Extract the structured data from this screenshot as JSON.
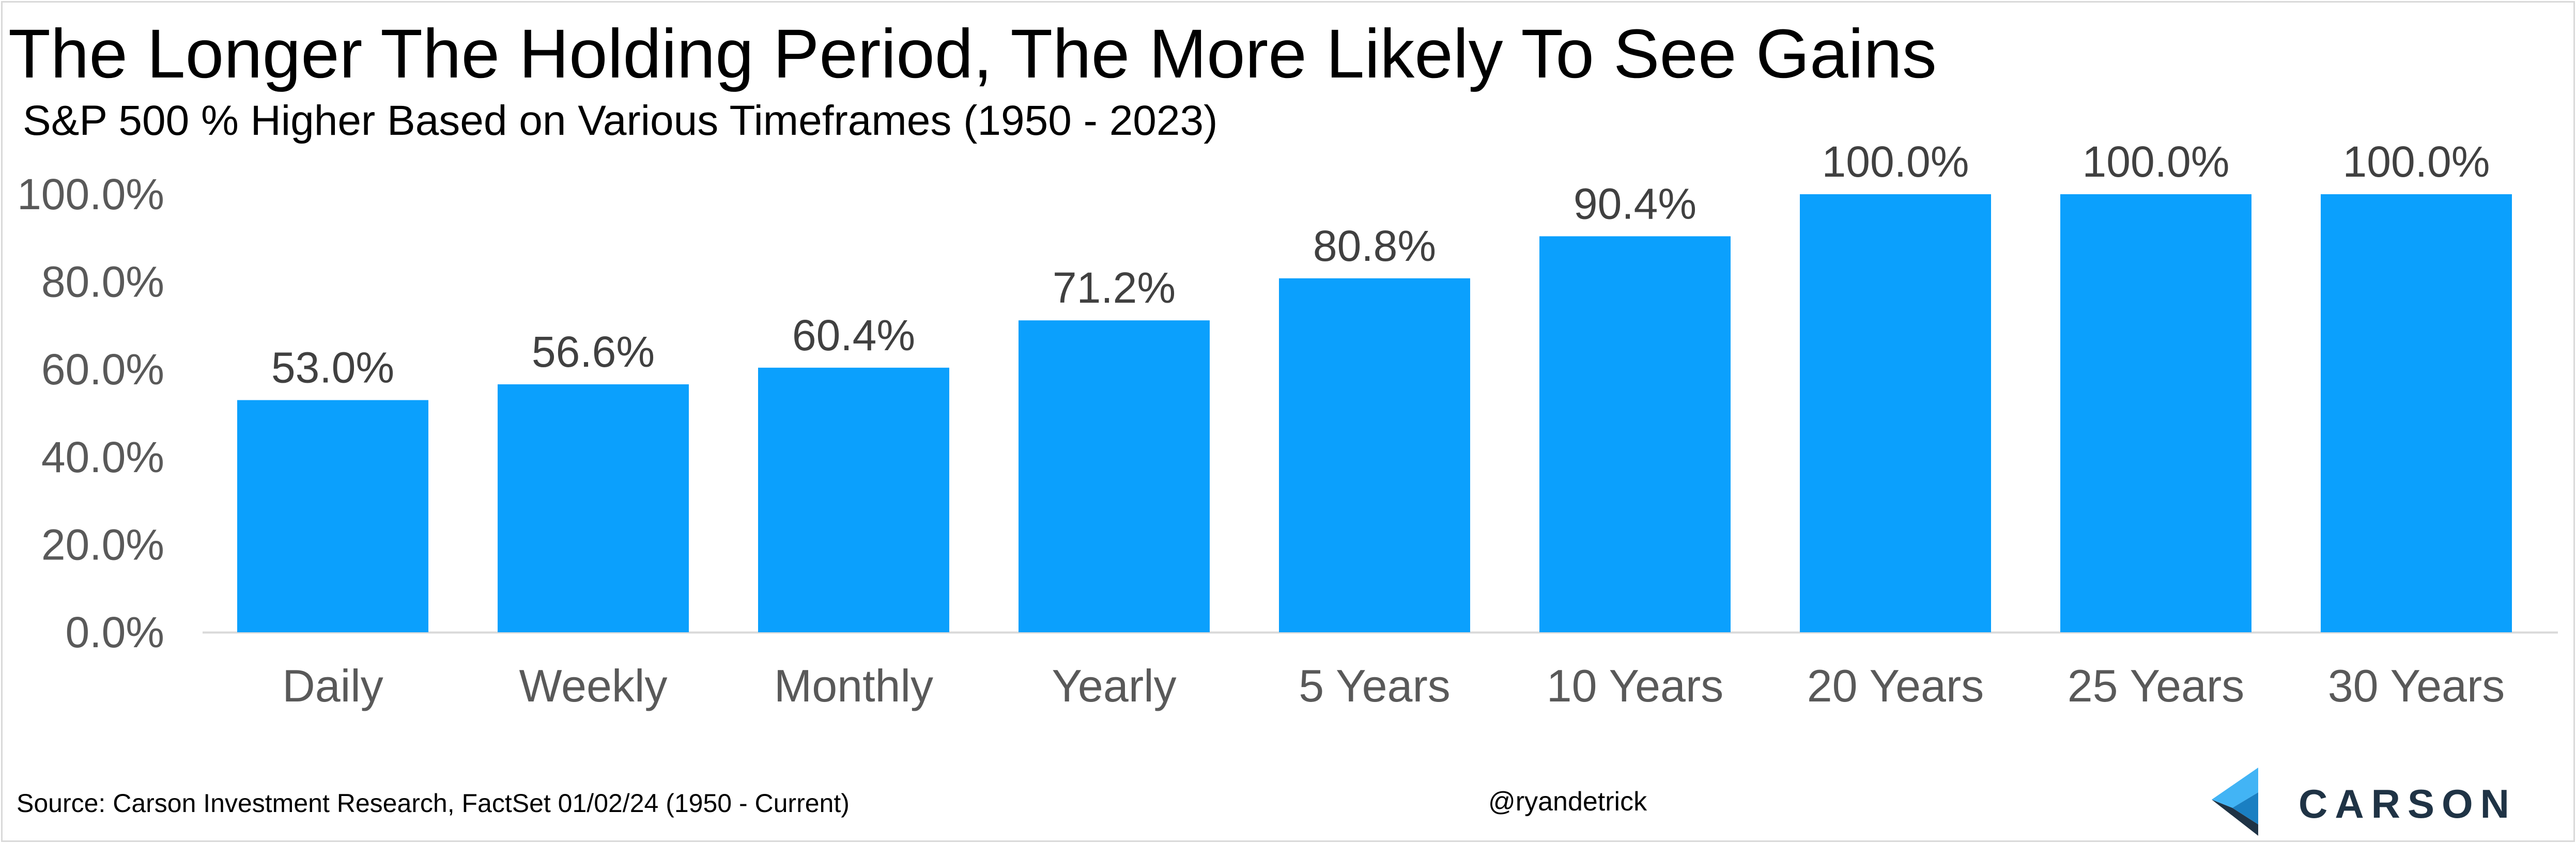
{
  "header": {
    "title": "The Longer The Holding Period, The More Likely To See Gains",
    "subtitle": "S&P 500 % Higher Based on Various Timeframes (1950 - 2023)"
  },
  "footer": {
    "source": "Source: Carson Investment Research, FactSet 01/02/24 (1950 - Current)",
    "handle": "@ryandetrick",
    "logo_text": "CARSON"
  },
  "colors": {
    "bar": "#0ba0fd",
    "axis_text": "#595959",
    "axis_line": "#d9d9d9",
    "logo_dark": "#1f3345",
    "logo_light": "#42b4f5",
    "logo_mid": "#1a7fc2"
  },
  "chart_data": {
    "type": "bar",
    "title": "The Longer The Holding Period, The More Likely To See Gains",
    "subtitle": "S&P 500 % Higher Based on Various Timeframes (1950 - 2023)",
    "categories": [
      "Daily",
      "Weekly",
      "Monthly",
      "Yearly",
      "5 Years",
      "10 Years",
      "20 Years",
      "25 Years",
      "30 Years"
    ],
    "values": [
      53.0,
      56.6,
      60.4,
      71.2,
      80.8,
      90.4,
      100.0,
      100.0,
      100.0
    ],
    "data_labels": [
      "53.0%",
      "56.6%",
      "60.4%",
      "71.2%",
      "80.8%",
      "90.4%",
      "100.0%",
      "100.0%",
      "100.0%"
    ],
    "y_ticks": [
      0,
      20,
      40,
      60,
      80,
      100
    ],
    "y_tick_labels": [
      "0.0%",
      "20.0%",
      "40.0%",
      "60.0%",
      "80.0%",
      "100.0%"
    ],
    "ylim": [
      0,
      100
    ],
    "xlabel": "",
    "ylabel": "",
    "grid": false,
    "legend": "none"
  }
}
